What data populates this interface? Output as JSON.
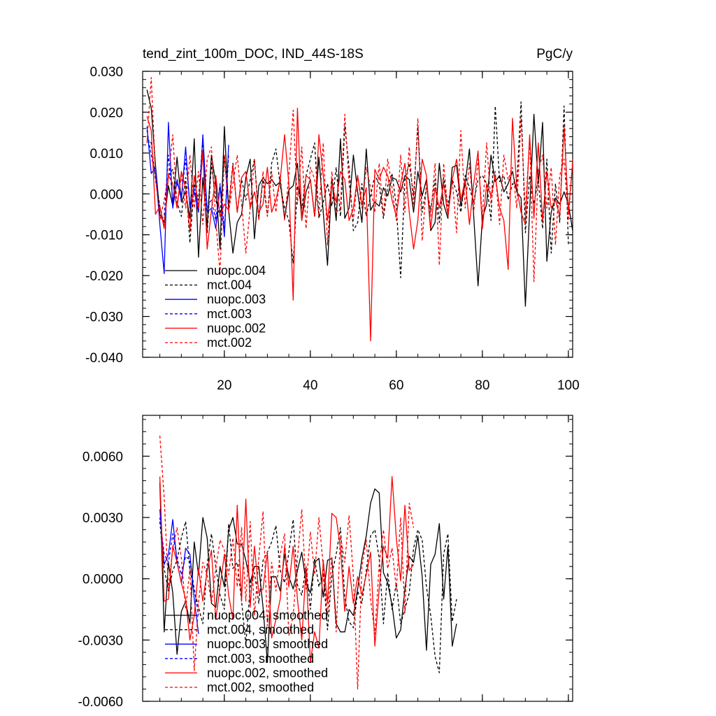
{
  "chart_data": [
    {
      "type": "line",
      "title": "tend_zint_100m_DOC, IND_44S-18S",
      "units": "PgC/y",
      "xlabel": "",
      "ylabel": "",
      "xlim": [
        1,
        101
      ],
      "ylim": [
        -0.04,
        0.03
      ],
      "xticks": [
        20,
        40,
        60,
        80,
        100
      ],
      "xtick_labels": [
        "20",
        "40",
        "60",
        "80",
        "100"
      ],
      "yticks": [
        0.03,
        0.02,
        0.01,
        0.0,
        -0.01,
        -0.02,
        -0.03,
        -0.04
      ],
      "ytick_labels": [
        "0.030",
        "0.020",
        "0.010",
        "0.000",
        "-0.010",
        "-0.020",
        "-0.030",
        "-0.040"
      ],
      "legend_position": "bottom-left",
      "series": [
        {
          "name": "nuopc.004",
          "color": "#000000",
          "dashed": false,
          "x0": 2,
          "values": [
            0.0255,
            0.021,
            0.007,
            -0.005,
            -0.007,
            0.002,
            -0.003,
            0.009,
            -0.002,
            0.0005,
            -0.006,
            0.0135,
            -0.0155,
            0.004,
            -0.008,
            0.0095,
            0.0025,
            -0.0135,
            0.0165,
            -0.004,
            -0.0145,
            -0.007,
            -0.005,
            0.004,
            0.0085,
            -0.011,
            0.002,
            0.004,
            0.0025,
            0.0035,
            0.002,
            0.003,
            -0.006,
            0.001,
            0.002,
            0.0075,
            -0.0065,
            0.0005,
            0.0035,
            -0.0055,
            0.009,
            -0.0045,
            -0.0175,
            0.0035,
            -0.0065,
            0.0135,
            -0.006,
            -0.0035,
            0.0095,
            0.0005,
            -0.007,
            0.011,
            -0.004,
            -0.002,
            -0.003,
            0.0015,
            -0.0005,
            0.004,
            0.0035,
            0.0005,
            0.0045,
            0.0035,
            -0.0045,
            0.0055,
            -0.0005,
            0.0035,
            -0.009,
            -0.007,
            0.0075,
            -0.0025,
            -0.006,
            0.0065,
            0.007,
            -0.003,
            0.0025,
            0.011,
            -0.0055,
            -0.0225,
            -0.006,
            -0.0025,
            0.0095,
            0.003,
            0.0045,
            0.0005,
            0.0025,
            0.0055,
            0.0005,
            -0.001,
            -0.0275,
            -0.004,
            0.0195,
            0.0025,
            0.0175,
            -0.0165,
            -0.0045,
            -0.001,
            -0.0025,
            0.0005,
            -0.0025,
            -0.009
          ]
        },
        {
          "name": "mct.004",
          "color": "#000000",
          "dashed": true,
          "x0": 2,
          "values": [
            0.0135,
            0.0125,
            0.0035,
            -0.003,
            -0.008,
            0.0045,
            0.006,
            -0.002,
            -0.0055,
            0.004,
            -0.012,
            0.0025,
            -0.0015,
            0.0135,
            -0.0095,
            0.0075,
            -0.0015,
            -0.0055,
            0.0095,
            -0.003,
            0.0075,
            -0.0045,
            0.0035,
            -0.0015,
            0.0035,
            0.0085,
            -0.006,
            0.0035,
            -0.0055,
            0.0075,
            0.011,
            0.002,
            -0.0035,
            -0.0065,
            -0.017,
            0.002,
            -0.0035,
            0.0045,
            0.0085,
            0.0125,
            -0.006,
            -0.002,
            0.0025,
            -0.003,
            0.0065,
            -0.0055,
            0.0165,
            0.0065,
            -0.009,
            -0.007,
            0.0025,
            -0.0055,
            -0.0005,
            0.0045,
            0.0025,
            -0.006,
            0.002,
            0.005,
            -0.003,
            -0.0205,
            0.0035,
            0.0075,
            -0.0005,
            0.0165,
            -0.0045,
            0.0015,
            -0.004,
            0.0035,
            -0.007,
            0.004,
            -0.003,
            0.0035,
            0.0005,
            -0.0045,
            0.0045,
            0.0015,
            -0.002,
            0.0035,
            0.0045,
            0.0025,
            -0.0065,
            0.0215,
            0.003,
            0.0045,
            -0.0015,
            0.0025,
            0.002,
            0.0225,
            -0.0095,
            0.0045,
            -0.0025,
            0.0035,
            -0.0085,
            0.0085,
            -0.0145,
            0.0025,
            -0.007,
            0.0215,
            -0.0125
          ]
        },
        {
          "name": "nuopc.003",
          "color": "#0000ff",
          "dashed": false,
          "x0": 2,
          "values": [
            0.0165,
            0.005,
            0.0065,
            -0.0075,
            -0.0195,
            0.0175,
            -0.0035,
            0.0035,
            -0.0015,
            0.0115,
            -0.0035,
            0.0005,
            -0.0045,
            0.0145,
            -0.0045,
            -0.0035,
            -0.0085,
            0.002,
            -0.0105,
            0.012
          ]
        },
        {
          "name": "mct.003",
          "color": "#0000ff",
          "dashed": true,
          "x0": 2,
          "values": [
            0.0155,
            0.0095,
            0.0045,
            -0.0065,
            -0.0055,
            0.0095,
            -0.0015,
            0.0025,
            -0.0005,
            0.0085,
            -0.0025,
            0.0015,
            -0.0035,
            0.0105,
            -0.0035,
            -0.0015,
            -0.0065,
            0.0025,
            -0.0085,
            0.0095
          ]
        },
        {
          "name": "nuopc.002",
          "color": "#ff0000",
          "dashed": false,
          "x0": 2,
          "values": [
            0.019,
            0.0155,
            -0.005,
            -0.003,
            -0.0085,
            0.0045,
            0.0025,
            -0.0035,
            0.0055,
            0.0015,
            -0.009,
            0.0045,
            -0.0035,
            0.0105,
            -0.0135,
            -0.004,
            0.0045,
            -0.0055,
            -0.0025,
            -0.004,
            0.007,
            -0.0045,
            0.004,
            0.0055,
            -0.0035,
            0.0005,
            -0.0045,
            -0.0025,
            0.0065,
            -0.0045,
            -0.0015,
            0.0035,
            0.0145,
            0.0025,
            -0.026,
            0.021,
            -0.0065,
            0.0045,
            0.0035,
            -0.0055,
            0.0145,
            0.0045,
            -0.0065,
            0.0025,
            -0.002,
            0.0055,
            0.0035,
            -0.0065,
            -0.0035,
            0.0045,
            -0.0025,
            0.0015,
            -0.036,
            0.006,
            0.0035,
            0.0065,
            0.0045,
            -0.0015,
            -0.0055,
            0.0025,
            0.0075,
            -0.0045,
            -0.0135,
            -0.0065,
            0.0085,
            0.0045,
            -0.0085,
            0.0015,
            -0.0035,
            0.0025,
            -0.0055,
            0.0035,
            0.0085,
            -0.0015,
            0.0035,
            -0.0075,
            0.0025,
            0.0105,
            -0.0085,
            0.0025,
            -0.0005,
            0.0045,
            -0.0035,
            -0.0065,
            -0.0185,
            0.0185,
            0.0015,
            -0.0045,
            -0.0075,
            0.0145,
            -0.006,
            0.0125,
            -0.0065,
            0.0055,
            -0.0035,
            -0.0015,
            -0.0055,
            0.0165,
            -0.0045,
            0.0075
          ]
        },
        {
          "name": "mct.002",
          "color": "#ff0000",
          "dashed": true,
          "x0": 2,
          "values": [
            0.0125,
            0.0285,
            0.0045,
            -0.0065,
            -0.0015,
            0.0045,
            0.0145,
            -0.003,
            0.0045,
            -0.0035,
            0.0095,
            -0.0035,
            0.0055,
            -0.0075,
            0.0085,
            0.0115,
            -0.0065,
            -0.0195,
            0.0095,
            -0.0045,
            0.0025,
            0.0095,
            -0.0025,
            -0.0145,
            -0.0035,
            0.0085,
            -0.0065,
            0.0055,
            -0.0055,
            0.0055,
            -0.0045,
            0.0045,
            -0.0065,
            0.0045,
            0.0205,
            -0.0025,
            0.0115,
            -0.0085,
            0.0065,
            0.0035,
            -0.0055,
            0.0125,
            -0.0125,
            0.0055,
            -0.0045,
            -0.0035,
            0.0195,
            0.0025,
            -0.0065,
            0.0045,
            -0.0035,
            0.0065,
            0.0015,
            -0.0045,
            0.0075,
            -0.0055,
            0.0085,
            0.0015,
            -0.0065,
            0.0095,
            -0.0045,
            0.0115,
            -0.0035,
            0.0185,
            -0.0115,
            0.0025,
            -0.0055,
            0.0075,
            -0.0175,
            0.0075,
            -0.0045,
            0.0035,
            -0.0095,
            0.0155,
            -0.0035,
            0.0075,
            -0.0045,
            0.0085,
            -0.0055,
            0.0125,
            -0.0025,
            0.0055,
            -0.0075,
            0.0095,
            0.0035,
            0.0065,
            -0.0035,
            0.0185,
            -0.0045,
            0.0135,
            -0.0215,
            0.0055,
            0.0095,
            -0.0035,
            0.0065,
            -0.0125,
            0.0045,
            0.0085,
            -0.0065,
            0.0085
          ]
        }
      ]
    },
    {
      "type": "line",
      "title": "",
      "xlabel": "",
      "ylabel": "",
      "xlim": [
        1,
        101
      ],
      "ylim": [
        -0.006,
        0.008
      ],
      "xticks": [
        20,
        40,
        60,
        80,
        100
      ],
      "yticks": [
        0.006,
        0.003,
        0.0,
        -0.003,
        -0.006
      ],
      "ytick_labels": [
        "0.0060",
        "0.0030",
        "0.0000",
        "-0.0030",
        "-0.0060"
      ],
      "legend_position": "bottom-left",
      "series": [
        {
          "name": "nuopc.004, smoothed",
          "color": "#000000",
          "dashed": false,
          "x0": 5,
          "values": [
            0.0047,
            -0.0026,
            0.0008,
            -0.0007,
            -0.0037,
            -0.0016,
            -0.0011,
            -0.0022,
            0.0018,
            0.0002,
            0.003,
            0.002,
            -0.0012,
            -0.0014,
            0.0006,
            -0.0004,
            0.0024,
            0.003,
            0.0017,
            0.0017,
            0.0009,
            -0.0002,
            0.0006,
            0.0006,
            -0.0014,
            -0.0041,
            0.0001,
            0.0001,
            -0.0006,
            0.0012,
            0.0001,
            -0.0005,
            0.0004,
            0.0013,
            -0.0002,
            -0.0007,
            0.0008,
            0.001,
            -0.0009,
            0.0009,
            0.001,
            -0.0022,
            -0.0026,
            -0.0026,
            -0.0015,
            -0.0018,
            -0.0005,
            0.001,
            0.0021,
            0.0037,
            0.0044,
            0.0042,
            0.0003,
            -0.0002,
            -0.0013,
            -0.0029,
            -0.0025,
            -0.0005,
            0.0011,
            0.0008,
            0.0021,
            0.0001,
            -0.0035,
            0.0007,
            0.0012,
            0.0027,
            -0.001,
            0.0016,
            -0.0033,
            -0.0022
          ]
        },
        {
          "name": "mct.004, smoothed",
          "color": "#000000",
          "dashed": true,
          "x0": 5,
          "values": [
            0.0028,
            0.0005,
            -0.0006,
            0.0004,
            0.0009,
            0.002,
            0.0028,
            0.0004,
            -0.0005,
            -0.0014,
            -0.0022,
            0.0007,
            0.0022,
            0.0006,
            -0.0008,
            -0.0015,
            0.0027,
            0.0005,
            0.0008,
            -0.0011,
            -0.0032,
            -0.0004,
            0.0003,
            -0.0012,
            0.0009,
            0.0013,
            0.0018,
            0.0026,
            0.0004,
            -0.0002,
            0.0013,
            0.0029,
            -0.0003,
            -0.0008,
            0.0006,
            -0.0015,
            0.001,
            -0.0004,
            0.0003,
            -0.0025,
            0.0002,
            0.0012,
            0.0025,
            -0.0009,
            -0.0021,
            -0.0024,
            -0.0006,
            -0.0012,
            0.0004,
            0.0021,
            0.0024,
            0.001,
            -0.0022,
            0.0003,
            -0.0015,
            -0.0002,
            -0.0022,
            -0.0015,
            -0.0007,
            0.0015,
            0.0024,
            0.0019,
            -0.0004,
            -0.0018,
            -0.0038,
            -0.0046,
            0.0012,
            0.0022,
            -0.0021,
            -0.001
          ]
        },
        {
          "name": "nuopc.003, smoothed",
          "color": "#0000ff",
          "dashed": false,
          "x0": 5,
          "values": [
            0.0034,
            0.0007,
            0.0012,
            0.0029,
            0.0008,
            -0.0002,
            0.0015,
            0.0012,
            -0.001,
            -0.0027
          ]
        },
        {
          "name": "mct.003, smoothed",
          "color": "#0000ff",
          "dashed": true,
          "x0": 5,
          "values": [
            0.003,
            0.0012,
            0.0008,
            0.0022,
            0.001,
            0.0002,
            0.0011,
            0.0009,
            -0.0005,
            -0.0018
          ]
        },
        {
          "name": "nuopc.002, smoothed",
          "color": "#ff0000",
          "dashed": false,
          "x0": 5,
          "values": [
            0.005,
            -0.0011,
            -0.001,
            0.0016,
            0.0008,
            -0.0002,
            -0.001,
            -0.003,
            -0.0018,
            0.0005,
            -0.0011,
            0.0004,
            0.0014,
            -0.002,
            -0.0004,
            0.0012,
            -0.0008,
            -0.002,
            0.0036,
            -0.0011,
            0.0039,
            -0.0014,
            0.0016,
            -0.0007,
            -0.0005,
            0.0013,
            -0.0029,
            -0.002,
            -0.001,
            0.0016,
            -0.0004,
            0.0016,
            -0.001,
            -0.003,
            0.0006,
            -0.0041,
            -0.0026,
            -0.0034,
            0.0009,
            -0.0012,
            0.0032,
            0.003,
            0.0015,
            -0.0016,
            0.0006,
            -0.0012,
            0.0001,
            -0.0008,
            0.0002,
            0.0013,
            -0.0033,
            -0.0005,
            0.0016,
            0.001,
            0.005,
            0.002,
            -0.0001,
            0.0036,
            0.0004,
            0.0007
          ]
        },
        {
          "name": "mct.002, smoothed",
          "color": "#ff0000",
          "dashed": true,
          "x0": 5,
          "values": [
            0.007,
            0.004,
            -0.0005,
            0.0015,
            0.0025,
            0.001,
            -0.0015,
            0.0005,
            -0.0045,
            -0.0012,
            0.0008,
            0.0002,
            -0.0012,
            0.0005,
            0.0019,
            0.0014,
            0.0002,
            0.002,
            -0.0004,
            0.0025,
            -0.0011,
            0.0028,
            -0.0018,
            0.001,
            0.0033,
            -0.0023,
            0.0008,
            -0.0006,
            0.0012,
            0.0022,
            -0.0028,
            -0.0018,
            0.001,
            0.0034,
            -0.0005,
            0.0023,
            0.0002,
            0.003,
            0.0006,
            -0.0018,
            0.0011,
            -0.0026,
            0.0021,
            0.0008,
            0.0031,
            0.0001,
            -0.0054,
            0.0006,
            0.0019,
            -0.001,
            -0.0027,
            0.0007,
            0.0024,
            0.0005,
            0.0015,
            -0.0005,
            0.003,
            -0.0017,
            0.0037,
            0.0025
          ]
        }
      ]
    }
  ]
}
